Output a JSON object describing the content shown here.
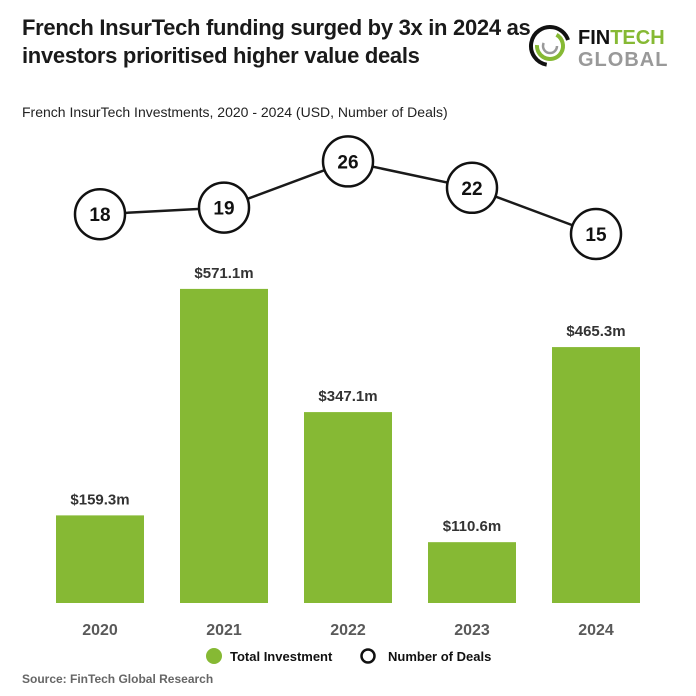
{
  "header": {
    "title": "French InsurTech funding surged by 3x in 2024 as investors prioritised higher value deals",
    "logo_text": "FINTECH GLOBAL"
  },
  "source": "Source: FinTech Global Research",
  "colors": {
    "bar": "#86b934",
    "line": "#1a1a1a",
    "axis_label": "#595959"
  },
  "chart_data": {
    "type": "bar+line",
    "title": "French InsurTech Investments, 2020 - 2024 (USD, Number of Deals)",
    "categories": [
      "2020",
      "2021",
      "2022",
      "2023",
      "2024"
    ],
    "series": [
      {
        "name": "Total Investment",
        "type": "bar",
        "unit": "USD m",
        "values": [
          159.3,
          571.1,
          347.1,
          110.6,
          465.3
        ],
        "labels": [
          "$159.3m",
          "$571.1m",
          "$347.1m",
          "$110.6m",
          "$465.3m"
        ]
      },
      {
        "name": "Number of Deals",
        "type": "line",
        "values": [
          18,
          19,
          26,
          22,
          15
        ],
        "labels": [
          "18",
          "19",
          "26",
          "22",
          "15"
        ]
      }
    ],
    "legend": "bottom",
    "grid": false
  }
}
